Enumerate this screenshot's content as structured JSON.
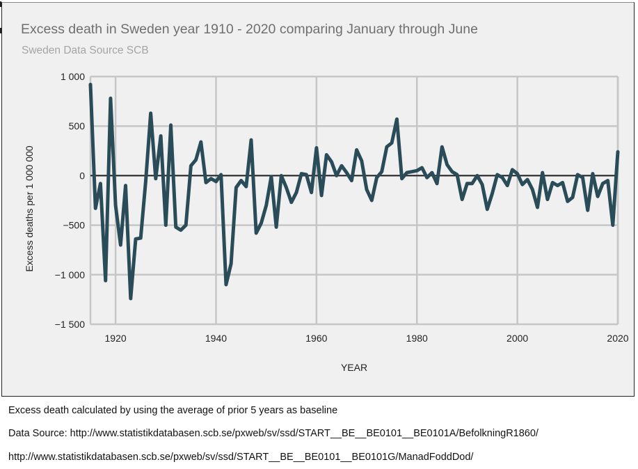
{
  "chart_data": {
    "type": "line",
    "title": "Excess death in Sweden year 1910 - 2020 comparing January through June",
    "subtitle": "Sweden Data Source SCB",
    "xlabel": "YEAR",
    "ylabel": "Excess deaths per 1 000 000",
    "xlim": [
      1915,
      2020
    ],
    "ylim": [
      -1500,
      1000
    ],
    "x_ticks": [
      1920,
      1940,
      1960,
      1980,
      2000,
      2020
    ],
    "x_tick_labels": [
      "1920",
      "1940",
      "1960",
      "1980",
      "2000",
      "2020"
    ],
    "y_ticks": [
      1000,
      500,
      0,
      -500,
      -1000,
      -1500
    ],
    "y_tick_labels": [
      "1 000",
      "500",
      "0",
      "−500",
      "−1 000",
      "−1 500"
    ],
    "grid": true,
    "line_color": "#2a4c58",
    "series": [
      {
        "name": "Excess deaths",
        "x": [
          1915,
          1916,
          1917,
          1918,
          1919,
          1920,
          1921,
          1922,
          1923,
          1924,
          1925,
          1926,
          1927,
          1928,
          1929,
          1930,
          1931,
          1932,
          1933,
          1934,
          1935,
          1936,
          1937,
          1938,
          1939,
          1940,
          1941,
          1942,
          1943,
          1944,
          1945,
          1946,
          1947,
          1948,
          1949,
          1950,
          1951,
          1952,
          1953,
          1954,
          1955,
          1956,
          1957,
          1958,
          1959,
          1960,
          1961,
          1962,
          1963,
          1964,
          1965,
          1966,
          1967,
          1968,
          1969,
          1970,
          1971,
          1972,
          1973,
          1974,
          1975,
          1976,
          1977,
          1978,
          1979,
          1980,
          1981,
          1982,
          1983,
          1984,
          1985,
          1986,
          1987,
          1988,
          1989,
          1990,
          1991,
          1992,
          1993,
          1994,
          1995,
          1996,
          1997,
          1998,
          1999,
          2000,
          2001,
          2002,
          2003,
          2004,
          2005,
          2006,
          2007,
          2008,
          2009,
          2010,
          2011,
          2012,
          2013,
          2014,
          2015,
          2016,
          2017,
          2018,
          2019,
          2020
        ],
        "values": [
          920,
          -330,
          -80,
          -1060,
          780,
          -300,
          -700,
          -100,
          -1240,
          -640,
          -630,
          -60,
          630,
          -30,
          400,
          -500,
          510,
          -520,
          -550,
          -500,
          100,
          160,
          340,
          -70,
          -30,
          -60,
          10,
          -1100,
          -890,
          -120,
          -50,
          -110,
          360,
          -580,
          -480,
          -300,
          -10,
          -520,
          0,
          -120,
          -270,
          -170,
          20,
          10,
          -170,
          280,
          -200,
          210,
          140,
          0,
          100,
          30,
          -50,
          260,
          150,
          -140,
          -250,
          -20,
          40,
          290,
          330,
          570,
          -30,
          30,
          40,
          50,
          80,
          -20,
          30,
          -80,
          290,
          110,
          40,
          10,
          -240,
          -80,
          -80,
          0,
          -90,
          -340,
          -180,
          10,
          -20,
          -100,
          60,
          20,
          -90,
          -40,
          -140,
          -320,
          30,
          -240,
          -70,
          -100,
          -70,
          -260,
          -220,
          10,
          -20,
          -350,
          20,
          -210,
          -80,
          -50,
          -500,
          240
        ]
      }
    ]
  },
  "footnotes": {
    "baseline_note": "Excess death calculated by using the average of prior 5 years as baseline",
    "source_line_1": "Data Source: http://www.statistikdatabasen.scb.se/pxweb/sv/ssd/START__BE__BE0101__BE0101A/BefolkningR1860/",
    "source_line_2": "http://www.statistikdatabasen.scb.se/pxweb/sv/ssd/START__BE__BE0101__BE0101G/ManadFoddDod/"
  }
}
